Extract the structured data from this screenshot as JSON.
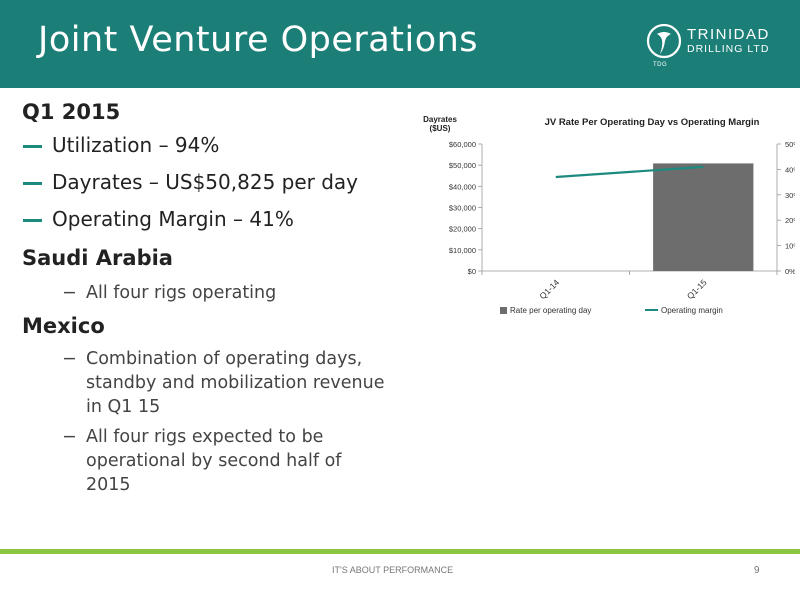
{
  "slide": {
    "title": "Joint Venture Operations",
    "page_number": "9",
    "footer": "IT'S ABOUT PERFORMANCE"
  },
  "logo": {
    "name": "TRINIDAD",
    "sub": "DRILLING LTD",
    "abbr": "TDG"
  },
  "content": {
    "q1_heading": "Q1 2015",
    "q1_bullets": [
      "Utilization – 94%",
      "Dayrates – US$50,825 per day",
      "Operating Margin – 41%"
    ],
    "saudi_heading": "Saudi Arabia",
    "saudi_bullets": [
      "All four rigs operating"
    ],
    "mexico_heading": "Mexico",
    "mexico_bullets": [
      "Combination of operating days, standby and mobilization revenue in Q1 15",
      "All four rigs expected to be operational by second half of 2015"
    ],
    "dash": "−"
  },
  "colors": {
    "header": "#1c7f77",
    "accent": "#1c8a7f",
    "footer_line": "#8bc541",
    "bar": "#6d6d6d",
    "line": "#1c8a7f"
  },
  "chart_data": {
    "type": "bar",
    "title": "JV Rate Per Operating Day vs Operating Margin",
    "ylabel_line1": "Dayrates",
    "ylabel_line2": "($US)",
    "categories": [
      "Q1-14",
      "Q1-15"
    ],
    "ylim": [
      0,
      60000
    ],
    "y_ticks": [
      "$0",
      "$10,000",
      "$20,000",
      "$30,000",
      "$40,000",
      "$50,000",
      "$60,000"
    ],
    "y2lim": [
      0,
      50
    ],
    "y2_ticks": [
      "0%",
      "10%",
      "20%",
      "30%",
      "40%",
      "50%"
    ],
    "series": [
      {
        "name": "Rate per operating day",
        "type": "bar",
        "axis": "left",
        "values": [
          null,
          50825
        ]
      },
      {
        "name": "Operating margin",
        "type": "line",
        "axis": "right",
        "values": [
          37,
          41
        ]
      }
    ],
    "legend_position": "bottom",
    "grid": false
  }
}
